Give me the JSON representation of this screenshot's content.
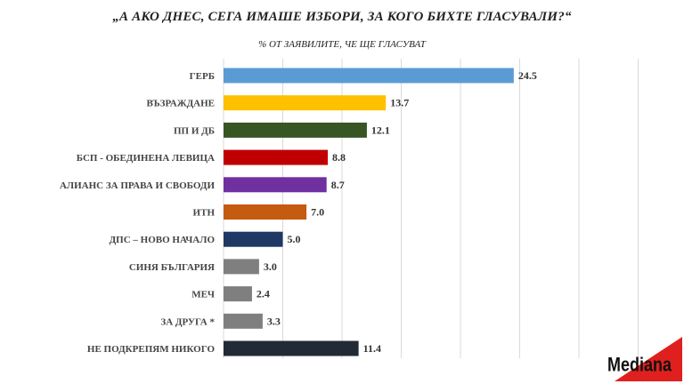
{
  "title": "„А АКО ДНЕС, СЕГА ИМАШЕ ИЗБОРИ, ЗА КОГО БИХТЕ ГЛАСУВАЛИ?“",
  "subtitle": "% ОТ ЗАЯВИЛИТЕ, ЧЕ ЩЕ ГЛАСУВАТ",
  "logo_text": "Mediana",
  "colors": {
    "logo_red": "#e0201e",
    "grid": "#d9d9d9"
  },
  "chart_data": {
    "type": "bar",
    "orientation": "horizontal",
    "title": "„А АКО ДНЕС, СЕГА ИМАШЕ ИЗБОРИ, ЗА КОГО БИХТЕ ГЛАСУВАЛИ?“",
    "subtitle": "% ОТ ЗАЯВИЛИТЕ, ЧЕ ЩЕ ГЛАСУВАТ",
    "categories": [
      "ГЕРБ",
      "ВЪЗРАЖДАНЕ",
      "ПП И ДБ",
      "БСП - ОБЕДИНЕНА ЛЕВИЦА",
      "АЛИАНС ЗА ПРАВА И СВОБОДИ",
      "ИТН",
      "ДПС – НОВО НАЧАЛО",
      "СИНЯ БЪЛГАРИЯ",
      "МЕЧ",
      "ЗА ДРУГА *",
      "НЕ ПОДКРЕПЯМ НИКОГО"
    ],
    "values": [
      24.5,
      13.7,
      12.1,
      8.8,
      8.7,
      7.0,
      5.0,
      3.0,
      2.4,
      3.3,
      11.4
    ],
    "value_labels": [
      "24.5",
      "13.7",
      "12.1",
      "8.8",
      "8.7",
      "7.0",
      "5.0",
      "3.0",
      "2.4",
      "3.3",
      "11.4"
    ],
    "colors": [
      "#5b9bd5",
      "#ffc000",
      "#375623",
      "#c00000",
      "#7030a0",
      "#c55a11",
      "#1f3864",
      "#7f7f7f",
      "#7f7f7f",
      "#7f7f7f",
      "#222a35"
    ],
    "xlim": [
      0,
      35
    ],
    "grid_step": 5,
    "grid": true,
    "legend": false
  }
}
